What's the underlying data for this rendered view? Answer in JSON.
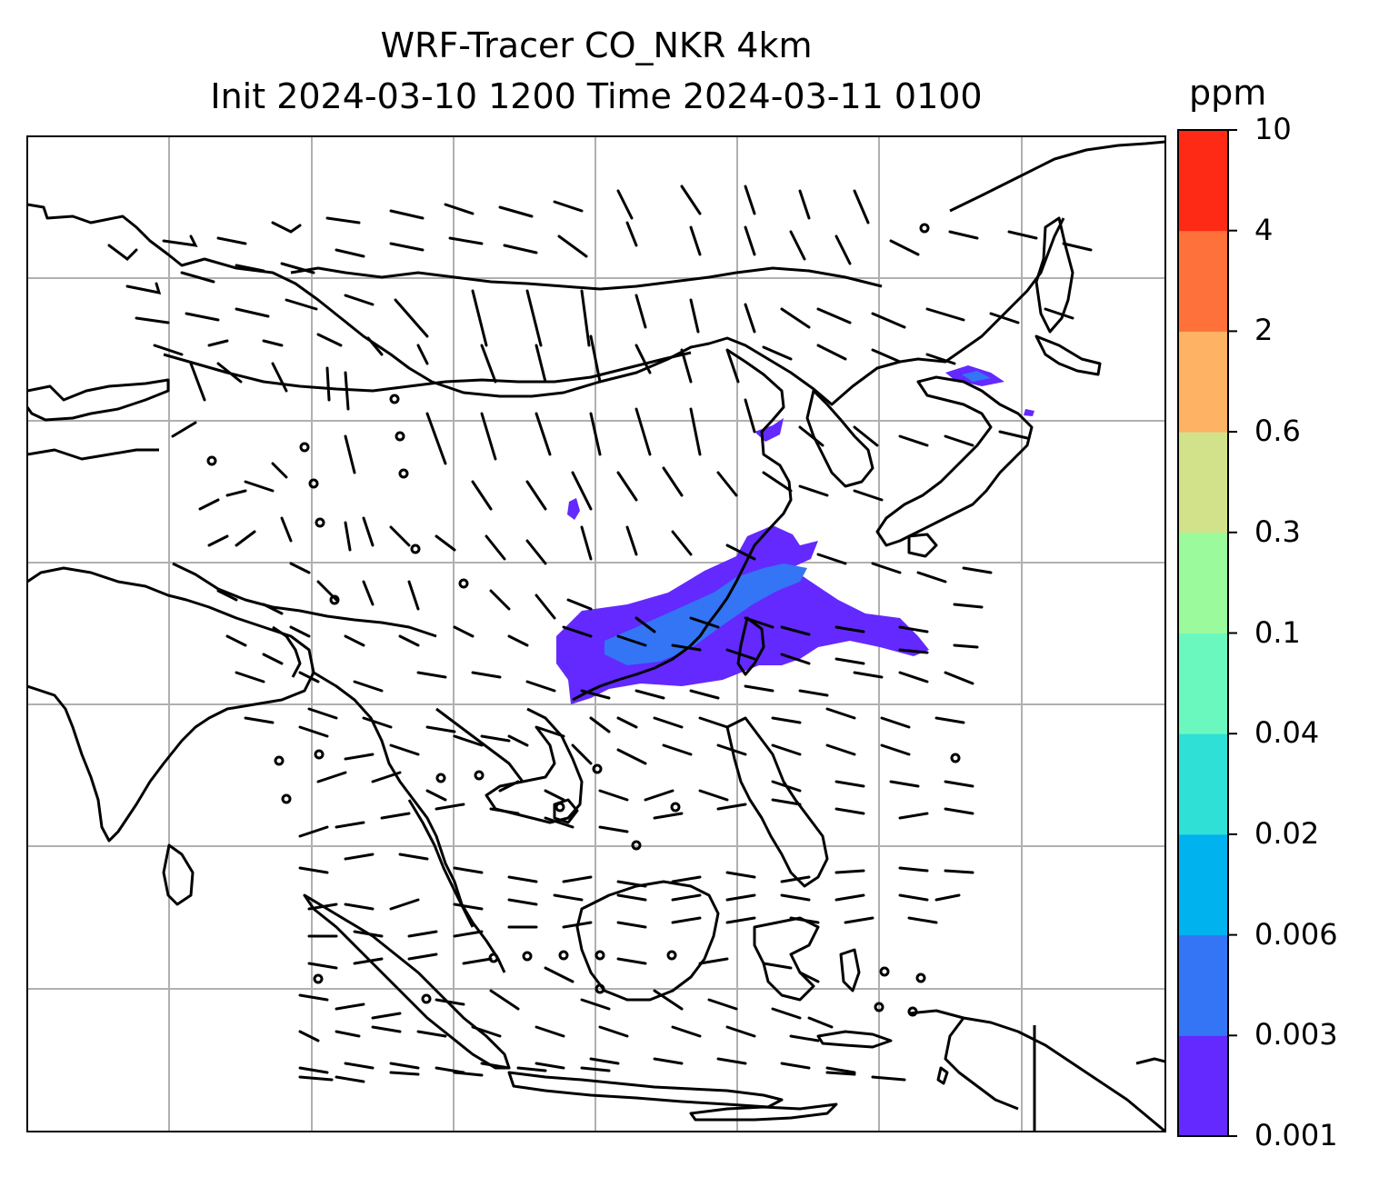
{
  "title": {
    "line1": "WRF-Tracer CO_NKR 4km",
    "line2": "Init 2024-03-10 1200 Time 2024-03-11 0100"
  },
  "colorbar": {
    "unit": "ppm",
    "ticks": [
      "0.001",
      "0.003",
      "0.006",
      "0.02",
      "0.04",
      "0.1",
      "0.3",
      "0.6",
      "2",
      "4",
      "10"
    ],
    "colors": [
      "#6329ff",
      "#3375f5",
      "#00b2ee",
      "#2ee0d6",
      "#6af8bf",
      "#9bfa9b",
      "#d1e28a",
      "#fdb264",
      "#ff713a",
      "#ff2a15"
    ]
  },
  "colors": {
    "coastline": "#000000",
    "grid": "#b0b0b0",
    "barb": "#000000"
  },
  "layers": [
    "coastlines",
    "gridlines",
    "wind-barbs",
    "tracer-CO-NKR-concentration"
  ]
}
